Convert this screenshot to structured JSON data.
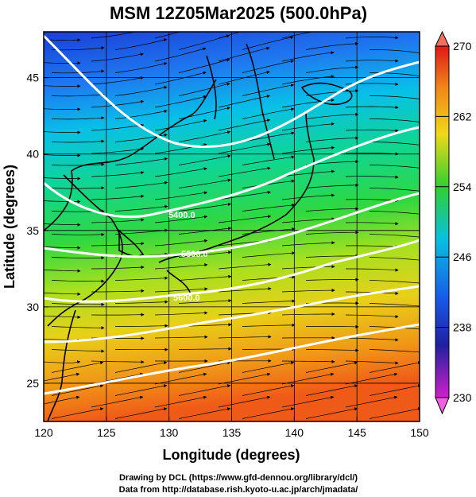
{
  "figure": {
    "title": "MSM 12Z05Mar2025 (500.0hPa)",
    "xlabel": "Longitude (degrees)",
    "ylabel": "Latitude  (degrees)",
    "x_ticks": [
      "120",
      "125",
      "130",
      "135",
      "140",
      "145",
      "150"
    ],
    "y_ticks": [
      "25",
      "30",
      "35",
      "40",
      "45"
    ],
    "colorbar_ticks": [
      "270",
      "262",
      "254",
      "246",
      "238",
      "230"
    ],
    "credit_line1": "Drawing by DCL (https://www.gfd-dennou.org/library/dcl/)",
    "credit_line2": "Data from http://database.rish.kyoto-u.ac.jp/arch/jmadata/"
  },
  "chart_data": {
    "type": "heatmap",
    "field": "temperature (shaded), geopotential height (white contours), wind (streamlines)",
    "xlim": [
      120,
      150
    ],
    "ylim": [
      22.5,
      48
    ],
    "colorbar_range": [
      230,
      270
    ],
    "colorbar_tick_values": [
      270,
      262,
      254,
      246,
      238,
      230
    ],
    "contour_labels": [
      "5400.0",
      "5500.0",
      "5600.0"
    ],
    "grid": true,
    "colors": {
      "cold_low": "#c000c0",
      "cold": "#1830d0",
      "cool": "#00a8f0",
      "mid": "#20d860",
      "warm": "#c8e020",
      "hot": "#f0a010",
      "hottest": "#e81818"
    }
  }
}
